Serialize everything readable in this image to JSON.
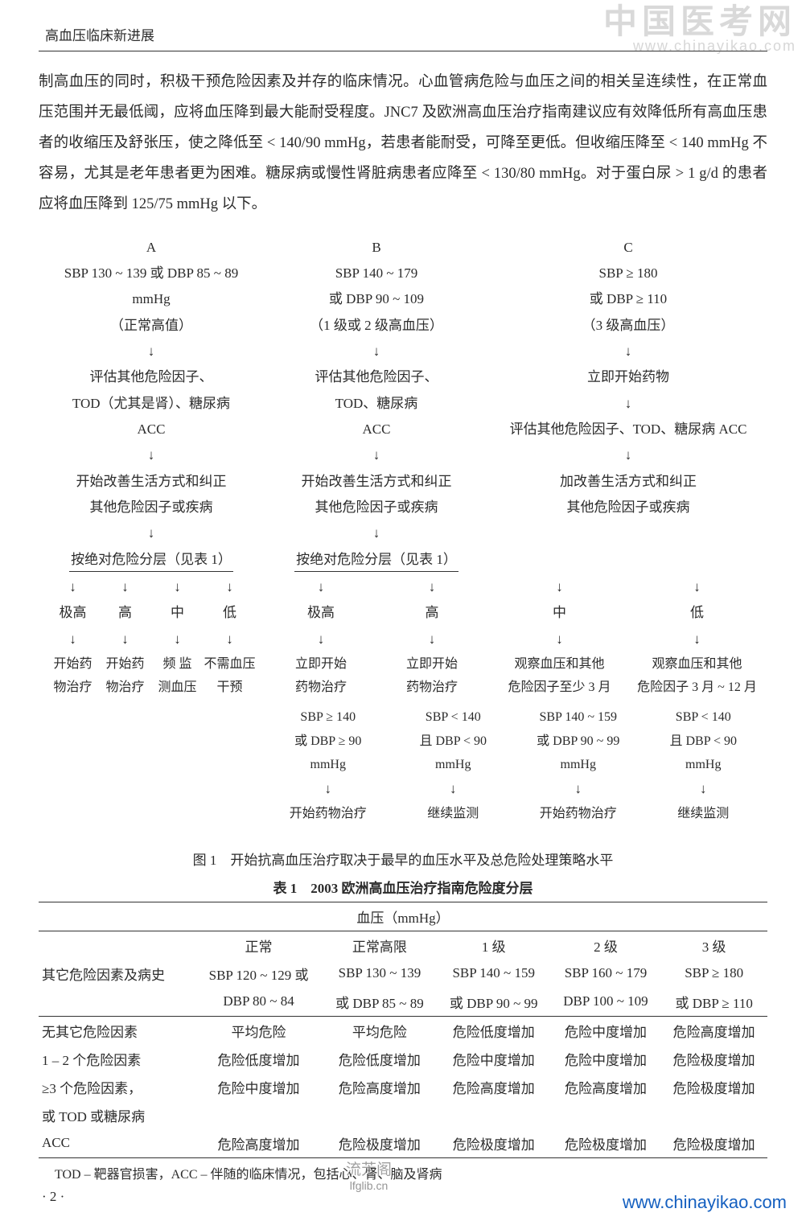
{
  "watermark_top": {
    "main": "中国医考网",
    "sub": "www.chinayikao.com"
  },
  "running_head": "高血压临床新进展",
  "paragraph": "制高血压的同时，积极干预危险因素及并存的临床情况。心血管病危险与血压之间的相关呈连续性，在正常血压范围并无最低阈，应将血压降到最大能耐受程度。JNC7 及欧洲高血压治疗指南建议应有效降低所有高血压患者的收缩压及舒张压，使之降低至 < 140/90 mmHg，若患者能耐受，可降至更低。但收缩压降至 < 140 mmHg 不容易，尤其是老年患者更为困难。糖尿病或慢性肾脏病患者应降至 < 130/80 mmHg。对于蛋白尿 > 1 g/d 的患者应将血压降到 125/75 mmHg 以下。",
  "flow": {
    "headers": {
      "A": "A",
      "B": "B",
      "C": "C"
    },
    "range": {
      "A": "SBP 130 ~ 139 或 DBP 85 ~ 89",
      "B": "SBP 140 ~ 179",
      "C": "SBP ≥ 180"
    },
    "unit": "mmHg",
    "range2": {
      "B": "或 DBP 90 ~ 109",
      "C": "或 DBP ≥ 110"
    },
    "class": {
      "A": "（正常高值）",
      "B": "（1 级或 2 级高血压）",
      "C": "（3 级高血压）"
    },
    "arrow": "↓",
    "assess": {
      "A1": "评估其他危险因子、",
      "A2": "TOD（尤其是肾）、糖尿病",
      "B1": "评估其他危险因子、",
      "B2": "TOD、糖尿病",
      "C1": "立即开始药物"
    },
    "acc": {
      "A": "ACC",
      "B": "ACC",
      "C": "评估其他危险因子、TOD、糖尿病 ACC"
    },
    "lifestyle": {
      "A1": "开始改善生活方式和纠正",
      "A2": "其他危险因子或疾病",
      "B1": "开始改善生活方式和纠正",
      "B2": "其他危险因子或疾病",
      "C1": "加改善生活方式和纠正",
      "C2": "其他危险因子或疾病"
    },
    "stratify": {
      "A": "按绝对危险分层（见表 1）",
      "B": "按绝对危险分层（见表 1）"
    },
    "levels": {
      "vh": "极高",
      "h": "高",
      "m": "中",
      "l": "低"
    },
    "actionsA": {
      "vh1": "开始药",
      "vh2": "物治疗",
      "h1": "开始药",
      "h2": "物治疗",
      "m1": "频  监",
      "m2": "测血压",
      "l1": "不需血压",
      "l2": "干预"
    },
    "actionsB": {
      "vh1": "立即开始",
      "vh2": "药物治疗",
      "h1": "立即开始",
      "h2": "药物治疗",
      "m1": "观察血压和其他",
      "m2": "危险因子至少 3 月",
      "l1": "观察血压和其他",
      "l2": "危险因子 3 月 ~ 12 月"
    },
    "followup": {
      "b_m_a1": "SBP ≥ 140",
      "b_m_a2": "或 DBP ≥ 90",
      "b_m_a3": "mmHg",
      "b_m_act": "开始药物治疗",
      "b_m_b1": "SBP < 140",
      "b_m_b2": "且 DBP < 90",
      "b_m_b3": "mmHg",
      "b_m_bct": "继续监测",
      "b_l_a1": "SBP 140 ~ 159",
      "b_l_a2": "或 DBP 90 ~ 99",
      "b_l_a3": "mmHg",
      "b_l_act": "开始药物治疗",
      "b_l_b1": "SBP < 140",
      "b_l_b2": "且 DBP < 90",
      "b_l_b3": "mmHg",
      "b_l_bct": "继续监测"
    }
  },
  "figure_caption": "图 1　开始抗高血压治疗取决于最早的血压水平及总危险处理策略水平",
  "table_caption": "表 1　2003 欧洲高血压治疗指南危险度分层",
  "table": {
    "header_span": "血压（mmHg）",
    "row_header_col": "其它危险因素及病史",
    "cols": {
      "c1a": "正常",
      "c1b": "SBP 120 ~ 129 或",
      "c1c": "DBP 80 ~ 84",
      "c2a": "正常高限",
      "c2b": "SBP 130 ~ 139",
      "c2c": "或 DBP 85 ~ 89",
      "c3a": "1 级",
      "c3b": "SBP 140 ~ 159",
      "c3c": "或 DBP 90 ~ 99",
      "c4a": "2 级",
      "c4b": "SBP 160 ~ 179",
      "c4c": "DBP 100 ~ 109",
      "c5a": "3 级",
      "c5b": "SBP ≥ 180",
      "c5c": "或 DBP ≥ 110"
    },
    "rows": [
      {
        "label": "无其它危险因素",
        "c": [
          "平均危险",
          "平均危险",
          "危险低度增加",
          "危险中度增加",
          "危险高度增加"
        ]
      },
      {
        "label": "1 – 2 个危险因素",
        "c": [
          "危险低度增加",
          "危险低度增加",
          "危险中度增加",
          "危险中度增加",
          "危险极度增加"
        ]
      },
      {
        "label": "≥3 个危险因素，",
        "c": [
          "危险中度增加",
          "危险高度增加",
          "危险高度增加",
          "危险高度增加",
          "危险极度增加"
        ]
      },
      {
        "label": "或 TOD 或糖尿病",
        "c": [
          "",
          "",
          "",
          "",
          ""
        ]
      },
      {
        "label": "ACC",
        "c": [
          "危险高度增加",
          "危险极度增加",
          "危险极度增加",
          "危险极度增加",
          "危险极度增加"
        ]
      }
    ]
  },
  "footnote": "TOD – 靶器官损害，ACC – 伴随的临床情况，包括心、肾、脑及肾病",
  "page_number": "· 2 ·",
  "watermark_mid": {
    "main": "流芳阁",
    "sub": "lfglib.cn"
  },
  "url_br": "www.chinayikao.com"
}
